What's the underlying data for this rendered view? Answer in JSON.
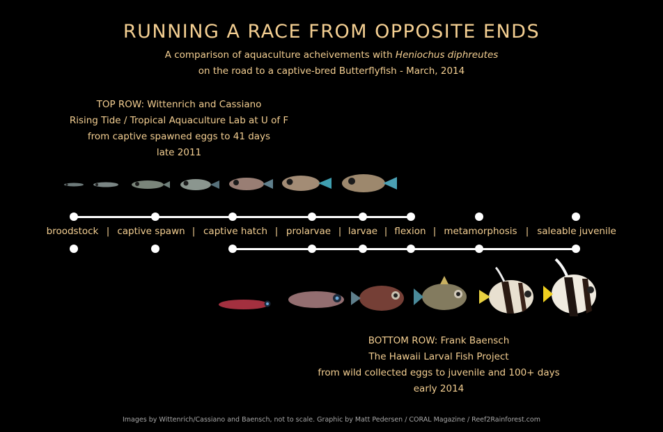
{
  "header": {
    "title": "RUNNING A RACE FROM OPPOSITE ENDS",
    "subtitle_line1_prefix": "A comparison of aquaculture acheivements with ",
    "subtitle_species": "Heniochus diphreutes",
    "subtitle_line2": "on the road to a captive-bred Butterflyfish - March, 2014"
  },
  "top_row": {
    "lines": [
      "TOP ROW: Wittenrich and Cassiano",
      "Rising Tide / Tropical Aquaculture Lab at U of F",
      "from captive spawned eggs to 41 days",
      "late 2011"
    ]
  },
  "bottom_row": {
    "lines": [
      "BOTTOM ROW: Frank Baensch",
      "The Hawaii Larval Fish Project",
      "from wild collected eggs to juvenile and 100+ days",
      "early 2014"
    ]
  },
  "stages": [
    "broodstock",
    "captive spawn",
    "captive hatch",
    "prolarvae",
    "larvae",
    "flexion",
    "metamorphosis",
    "saleable juvenile"
  ],
  "separator": "|",
  "timeline": {
    "top_reached_stages": [
      "broodstock",
      "captive spawn",
      "captive hatch",
      "prolarvae",
      "larvae",
      "flexion"
    ],
    "bottom_reached_stages": [
      "captive hatch",
      "prolarvae",
      "larvae",
      "flexion",
      "metamorphosis",
      "saleable juvenile"
    ]
  },
  "credit": "Images by Wittenrich/Cassiano and Baensch, not to scale. Graphic by Matt Pedersen / CORAL Magazine / Reef2Rainforest.com"
}
